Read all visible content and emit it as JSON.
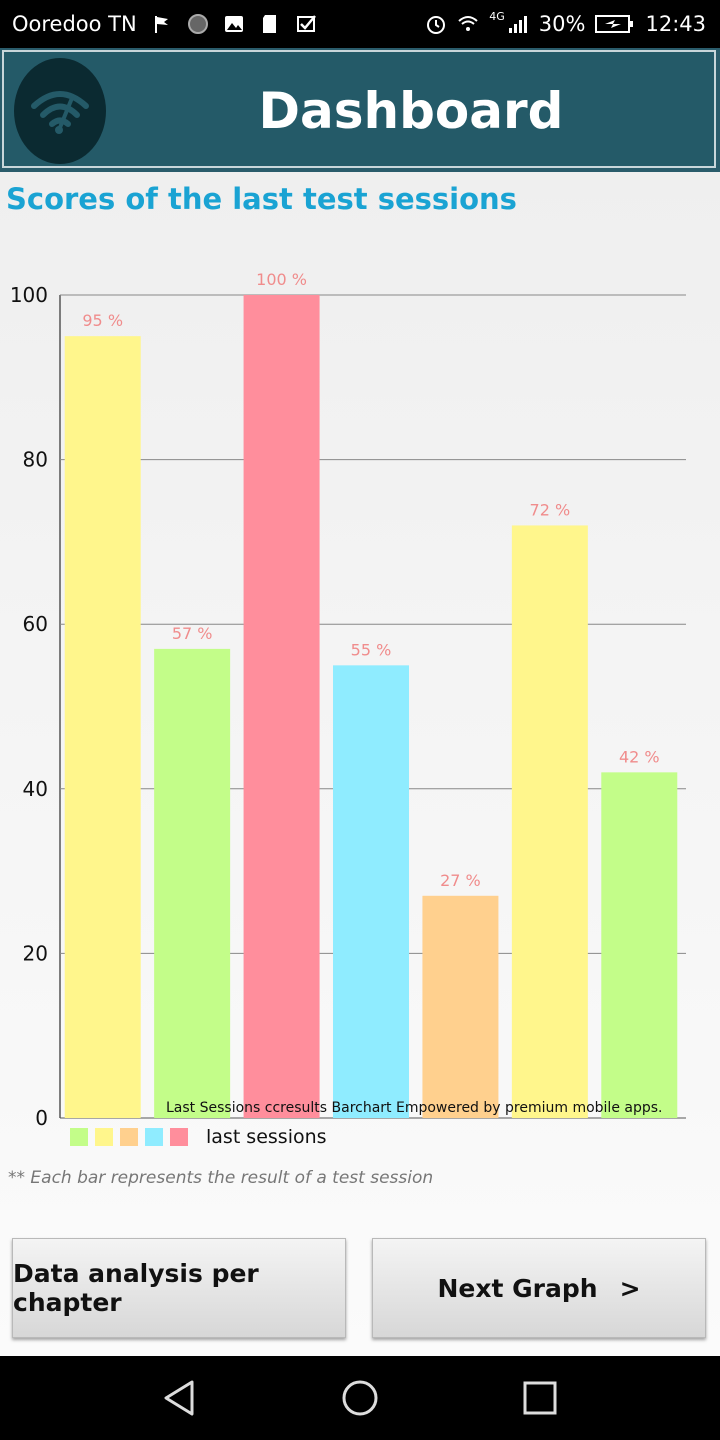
{
  "status_bar": {
    "carrier": "Ooredoo TN",
    "battery": "30%",
    "time": "12:43",
    "network": "4G",
    "icons": [
      "flag-icon",
      "circle-icon",
      "image-icon",
      "sd-card-icon",
      "check-icon",
      "alarm-icon",
      "wifi-icon",
      "signal-icon",
      "battery-charging-icon"
    ]
  },
  "header": {
    "title": "Dashboard",
    "logo_icon": "wifi-gauge-icon"
  },
  "section": {
    "title": "Scores of the last test sessions",
    "footnote": "** Each bar represents the result of a test session"
  },
  "chart_data": {
    "type": "bar",
    "categories": [
      "",
      "",
      "",
      "",
      "",
      "",
      ""
    ],
    "values": [
      95,
      57,
      100,
      55,
      27,
      72,
      42
    ],
    "data_labels": [
      "95 %",
      "57 %",
      "100 %",
      "55 %",
      "27 %",
      "72 %",
      "42 %"
    ],
    "colors": [
      "#fff68c",
      "#c3fd89",
      "#ff8e9c",
      "#8fecff",
      "#ffd08e",
      "#fff68c",
      "#c3fd89"
    ],
    "ylim": [
      0,
      100
    ],
    "yticks": [
      0,
      20,
      40,
      60,
      80,
      100
    ],
    "grid": true,
    "credit_text": "Last Sessions ccresults Barchart  Empowered by premium mobile apps.",
    "legend": {
      "colors": [
        "#c3fd89",
        "#fff68c",
        "#ffd08e",
        "#8fecff",
        "#ff8e9c"
      ],
      "label": "last sessions",
      "placement": "bottom-left"
    }
  },
  "buttons": {
    "analysis_label": "Data analysis per chapter",
    "next_label": "Next Graph",
    "next_arrow": ">"
  },
  "nav": {
    "icons": [
      "back-icon",
      "home-icon",
      "recents-icon"
    ]
  }
}
